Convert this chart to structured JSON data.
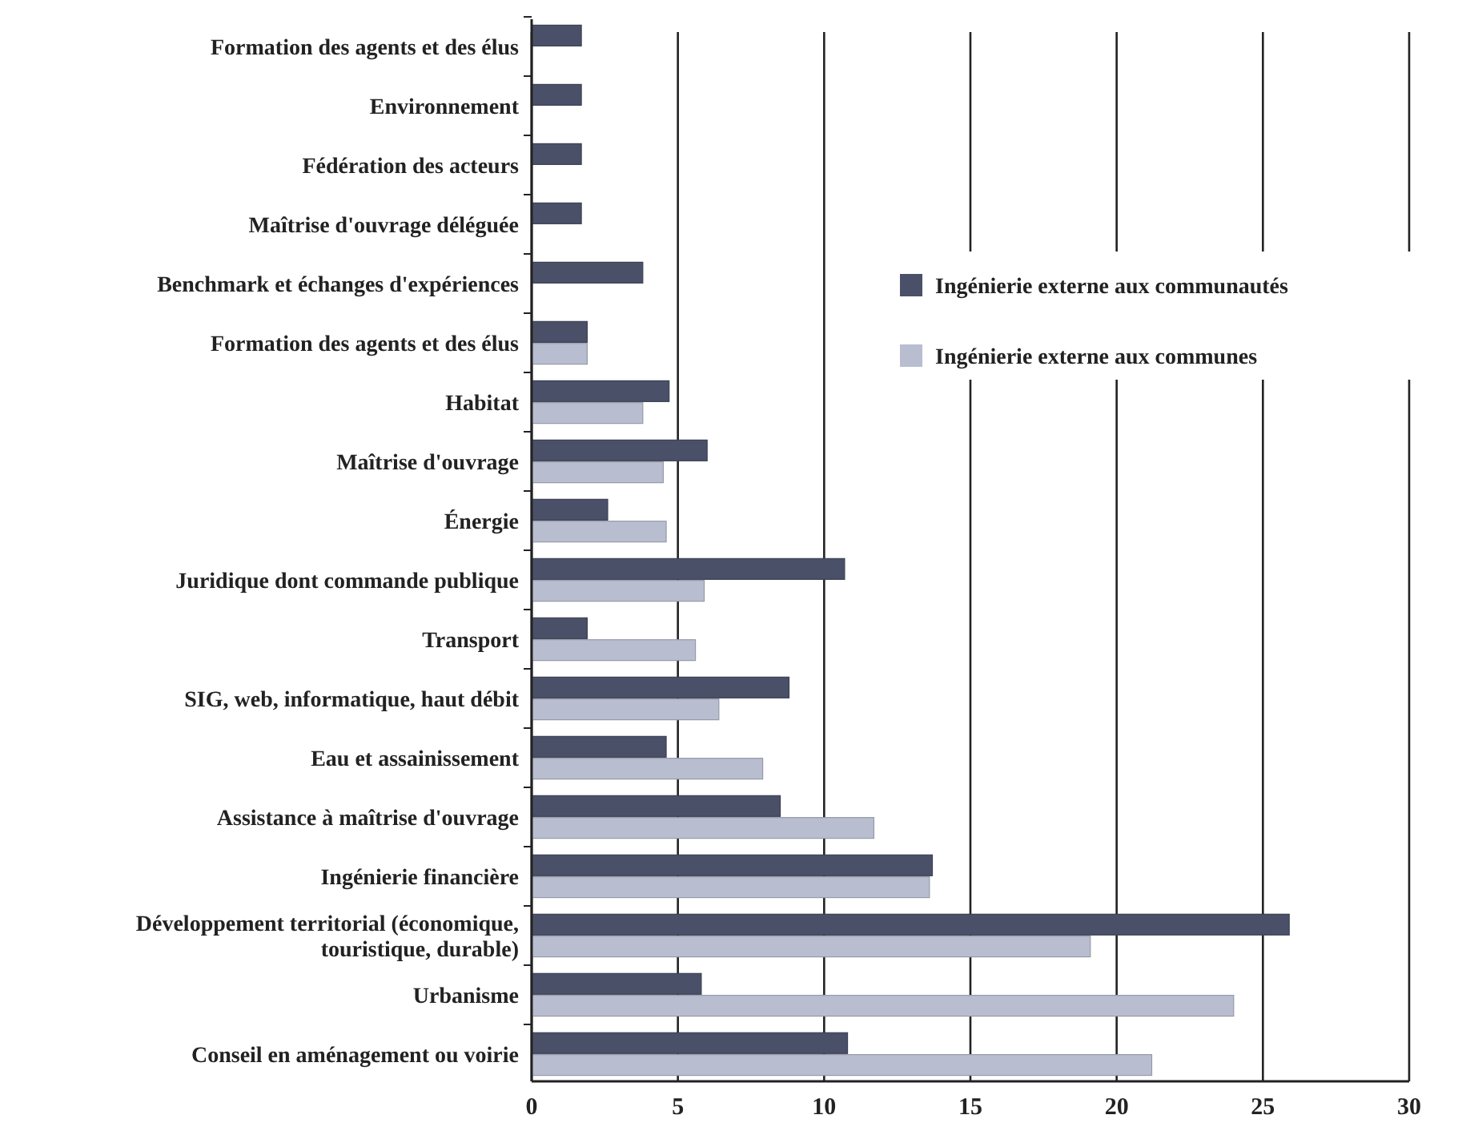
{
  "chart_data": {
    "type": "bar",
    "orientation": "horizontal",
    "categories": [
      "Formation des agents et des élus",
      "Environnement",
      "Fédération des acteurs",
      "Maîtrise d'ouvrage déléguée",
      "Benchmark et échanges d'expériences",
      "Formation des agents et des élus",
      "Habitat",
      "Maîtrise d'ouvrage",
      "Énergie",
      "Juridique dont commande publique",
      "Transport",
      "SIG, web, informatique, haut débit",
      "Eau et assainissement",
      "Assistance à maîtrise d'ouvrage",
      "Ingénierie financière",
      "Développement territorial (économique, touristique, durable)",
      "Urbanisme",
      "Conseil en aménagement ou voirie"
    ],
    "series": [
      {
        "name": "Ingénierie externe aux communautés",
        "color": "#4a5068",
        "values": [
          1.7,
          1.7,
          1.7,
          1.7,
          3.8,
          1.9,
          4.7,
          6.0,
          2.6,
          10.7,
          1.9,
          8.8,
          4.6,
          8.5,
          13.7,
          25.9,
          5.8,
          10.8
        ]
      },
      {
        "name": "Ingénierie externe aux communes",
        "color": "#b9bdd0",
        "values": [
          null,
          null,
          null,
          null,
          null,
          1.9,
          3.8,
          4.5,
          4.6,
          5.9,
          5.6,
          6.4,
          7.9,
          11.7,
          13.6,
          19.1,
          24.0,
          21.2
        ]
      }
    ],
    "xlim": [
      0,
      30
    ],
    "xticks": [
      0,
      5,
      10,
      15,
      20,
      25,
      30
    ],
    "grid": "x",
    "legend": "top right"
  }
}
